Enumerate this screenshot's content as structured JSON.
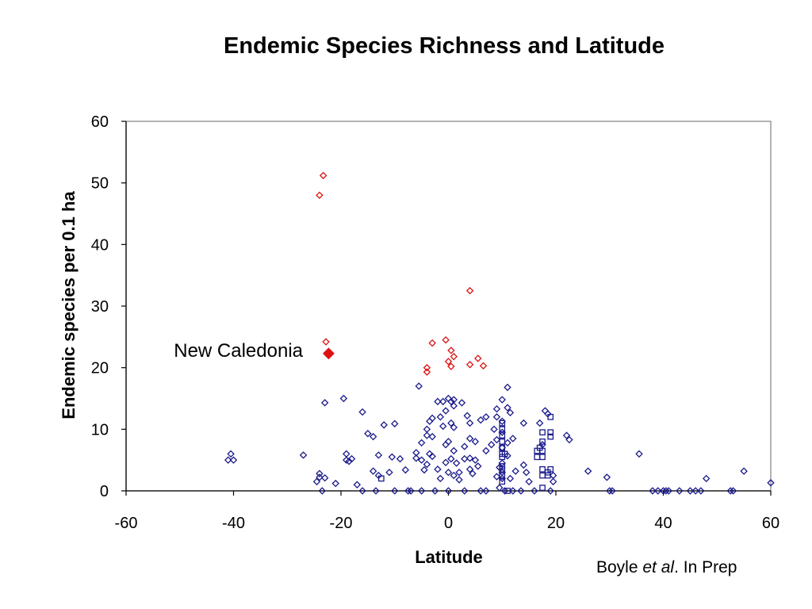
{
  "chart_data": {
    "type": "scatter",
    "title": "Endemic Species Richness and Latitude",
    "xlabel": "Latitude",
    "ylabel": "Endemic species per 0.1 ha",
    "xlim": [
      -60,
      60
    ],
    "ylim": [
      0,
      60
    ],
    "xticks": [
      -60,
      -40,
      -20,
      0,
      20,
      40,
      60
    ],
    "yticks": [
      0,
      10,
      20,
      30,
      40,
      50,
      60
    ],
    "grid": false,
    "colors": {
      "blue": "#1a1a8c",
      "red": "#dd1111",
      "axis": "#808080"
    },
    "annotation": {
      "text": "New Caledonia",
      "point": {
        "x": -22.3,
        "y": 22.3
      }
    },
    "series": [
      {
        "marker": "diamond",
        "color": "#dd1111",
        "points": [
          [
            -24,
            48
          ],
          [
            -23.3,
            51.2
          ],
          [
            -22.8,
            24.2
          ],
          [
            4,
            32.5
          ],
          [
            -0.5,
            24.5
          ],
          [
            -3,
            24
          ],
          [
            -4,
            20
          ],
          [
            -4,
            19.3
          ],
          [
            0.5,
            22.8
          ],
          [
            0.5,
            20.2
          ],
          [
            1,
            21.8
          ],
          [
            0,
            21
          ],
          [
            4,
            20.5
          ],
          [
            5.5,
            21.5
          ],
          [
            6.5,
            20.3
          ]
        ]
      },
      {
        "marker": "diamond-filled",
        "color": "#dd1111",
        "points": [
          [
            -22.3,
            22.3
          ]
        ]
      },
      {
        "marker": "diamond",
        "color": "#1a1a8c",
        "points": [
          [
            -40.5,
            6
          ],
          [
            -41,
            5
          ],
          [
            -40,
            5
          ],
          [
            -27,
            5.8
          ],
          [
            -24.5,
            1.5
          ],
          [
            -24,
            2.2
          ],
          [
            -24,
            2.8
          ],
          [
            -23.5,
            0
          ],
          [
            -23,
            14.3
          ],
          [
            -23,
            2.1
          ],
          [
            -21,
            1.2
          ],
          [
            -19.5,
            15
          ],
          [
            -19,
            6
          ],
          [
            -19,
            5
          ],
          [
            -18.5,
            4.8
          ],
          [
            -18,
            5.2
          ],
          [
            -17,
            1
          ],
          [
            -16,
            0
          ],
          [
            -16,
            12.8
          ],
          [
            -15,
            9.3
          ],
          [
            -14,
            8.8
          ],
          [
            -14,
            3.2
          ],
          [
            -13.5,
            0
          ],
          [
            -13,
            5.8
          ],
          [
            -13,
            2.5
          ],
          [
            -12,
            10.7
          ],
          [
            -11,
            3
          ],
          [
            -10.5,
            5.5
          ],
          [
            -10,
            10.9
          ],
          [
            -10,
            0
          ],
          [
            -9,
            5.2
          ],
          [
            -8,
            3.4
          ],
          [
            -7.5,
            0
          ],
          [
            -7,
            0
          ],
          [
            -6,
            5.3
          ],
          [
            -6,
            6.2
          ],
          [
            -5.5,
            17
          ],
          [
            -5,
            7.8
          ],
          [
            -5,
            5
          ],
          [
            -5,
            0
          ],
          [
            -4.5,
            3.4
          ],
          [
            -4,
            10
          ],
          [
            -4,
            9
          ],
          [
            -4,
            4.3
          ],
          [
            -3.5,
            11.3
          ],
          [
            -3.5,
            6
          ],
          [
            -3,
            11.8
          ],
          [
            -3,
            8.8
          ],
          [
            -3,
            5.6
          ],
          [
            -2.5,
            0
          ],
          [
            -2,
            14.5
          ],
          [
            -2,
            3.5
          ],
          [
            -1.5,
            12
          ],
          [
            -1.5,
            2
          ],
          [
            -1,
            10.5
          ],
          [
            -1,
            14.5
          ],
          [
            -0.5,
            13
          ],
          [
            -0.5,
            7.5
          ],
          [
            -0.5,
            4.6
          ],
          [
            0,
            15
          ],
          [
            0,
            8
          ],
          [
            0,
            3
          ],
          [
            0,
            0
          ],
          [
            0.5,
            14.5
          ],
          [
            0.5,
            11
          ],
          [
            0.5,
            5.2
          ],
          [
            1,
            14.8
          ],
          [
            1,
            13.8
          ],
          [
            1,
            10.3
          ],
          [
            1,
            6.5
          ],
          [
            1,
            2.5
          ],
          [
            1.5,
            4.5
          ],
          [
            2,
            1.8
          ],
          [
            2,
            3
          ],
          [
            2.5,
            14.3
          ],
          [
            3,
            7.2
          ],
          [
            3,
            5.2
          ],
          [
            3,
            0
          ],
          [
            3.5,
            12.2
          ],
          [
            4,
            11
          ],
          [
            4,
            8.5
          ],
          [
            4,
            5.3
          ],
          [
            4,
            3.5
          ],
          [
            4.5,
            2.8
          ],
          [
            5,
            8
          ],
          [
            5,
            5
          ],
          [
            5.5,
            4
          ],
          [
            6,
            0
          ],
          [
            6,
            11.5
          ],
          [
            7,
            12
          ],
          [
            7,
            6.5
          ],
          [
            7,
            0
          ],
          [
            8,
            7.5
          ],
          [
            8.5,
            10
          ],
          [
            9,
            13.3
          ],
          [
            9,
            12
          ],
          [
            9,
            8.3
          ],
          [
            9,
            2.3
          ],
          [
            9.5,
            3.8
          ],
          [
            9.5,
            0.5
          ],
          [
            10,
            14.8
          ],
          [
            10,
            11.3
          ],
          [
            10,
            9.5
          ],
          [
            10,
            7
          ],
          [
            10,
            4.5
          ],
          [
            10,
            3
          ],
          [
            10,
            2
          ],
          [
            10.5,
            0
          ],
          [
            11,
            13.5
          ],
          [
            11,
            16.8
          ],
          [
            11,
            7.8
          ],
          [
            11,
            5.7
          ],
          [
            11.5,
            12.7
          ],
          [
            11.5,
            2
          ],
          [
            12,
            8.5
          ],
          [
            12,
            0
          ],
          [
            12.5,
            3.2
          ],
          [
            13.5,
            0
          ],
          [
            14,
            11
          ],
          [
            14,
            4.2
          ],
          [
            14.5,
            3
          ],
          [
            15,
            1.5
          ],
          [
            16,
            0
          ],
          [
            17,
            11
          ],
          [
            17.5,
            7.5
          ],
          [
            18,
            13
          ],
          [
            18.5,
            12.5
          ],
          [
            19,
            0
          ],
          [
            19.5,
            2.5
          ],
          [
            19.5,
            1.5
          ],
          [
            22,
            9
          ],
          [
            22.5,
            8.3
          ],
          [
            26,
            3.2
          ],
          [
            29.5,
            2.2
          ],
          [
            30,
            0
          ],
          [
            30.5,
            0
          ],
          [
            35.5,
            6
          ],
          [
            38,
            0
          ],
          [
            39,
            0
          ],
          [
            40,
            0
          ],
          [
            40.5,
            0
          ],
          [
            41,
            0
          ],
          [
            43,
            0
          ],
          [
            45,
            0
          ],
          [
            46,
            0
          ],
          [
            47,
            0
          ],
          [
            48,
            2
          ],
          [
            52.5,
            0
          ],
          [
            53,
            0
          ],
          [
            55,
            3.2
          ],
          [
            60,
            1.3
          ]
        ]
      },
      {
        "marker": "square",
        "color": "#1a1a8c",
        "points": [
          [
            -12.5,
            2
          ],
          [
            10,
            11
          ],
          [
            10,
            10
          ],
          [
            10,
            9
          ],
          [
            10,
            8
          ],
          [
            10,
            7
          ],
          [
            10,
            6
          ],
          [
            10,
            5.5
          ],
          [
            10,
            4
          ],
          [
            10,
            3.5
          ],
          [
            10,
            2.5
          ],
          [
            10,
            1.5
          ],
          [
            10.5,
            6
          ],
          [
            16.5,
            6.5
          ],
          [
            16.5,
            5.5
          ],
          [
            17,
            7
          ],
          [
            17.5,
            9.5
          ],
          [
            17.5,
            8
          ],
          [
            17.5,
            6.5
          ],
          [
            17.5,
            5.5
          ],
          [
            17.5,
            3.5
          ],
          [
            17.5,
            2.5
          ],
          [
            18.5,
            3
          ],
          [
            18.5,
            2.5
          ],
          [
            19,
            12
          ],
          [
            19,
            9.5
          ],
          [
            19,
            8.8
          ],
          [
            19,
            3.5
          ],
          [
            17.5,
            0.5
          ],
          [
            11,
            0
          ]
        ]
      }
    ]
  },
  "credit": {
    "prefix": "Boyle ",
    "italic": "et al",
    "suffix": ". In Prep"
  }
}
